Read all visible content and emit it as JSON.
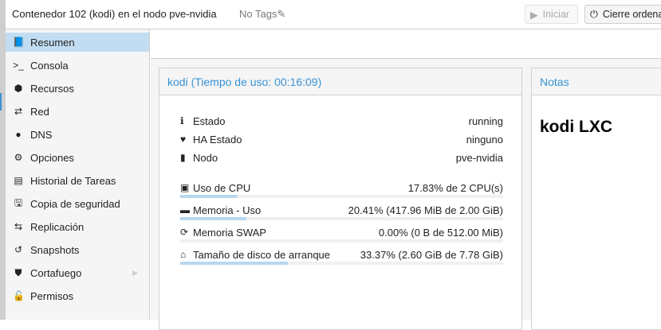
{
  "header": {
    "title": "Contenedor 102 (kodi) en el nodo pve-nvidia",
    "tags": "No Tags",
    "start_label": "Iniciar",
    "shutdown_label": "Cierre ordenado"
  },
  "sidebar": {
    "items": [
      {
        "label": "Resumen",
        "icon": "book-icon",
        "glyph": "📘"
      },
      {
        "label": "Consola",
        "icon": "terminal-icon",
        "glyph": ">_"
      },
      {
        "label": "Recursos",
        "icon": "cube-icon",
        "glyph": "⬢"
      },
      {
        "label": "Red",
        "icon": "exchange-icon",
        "glyph": "⇄"
      },
      {
        "label": "DNS",
        "icon": "globe-icon",
        "glyph": "●"
      },
      {
        "label": "Opciones",
        "icon": "gear-icon",
        "glyph": "⚙"
      },
      {
        "label": "Historial de Tareas",
        "icon": "list-icon",
        "glyph": "▤"
      },
      {
        "label": "Copia de seguridad",
        "icon": "floppy-icon",
        "glyph": "🖫"
      },
      {
        "label": "Replicación",
        "icon": "retweet-icon",
        "glyph": "⇆"
      },
      {
        "label": "Snapshots",
        "icon": "history-icon",
        "glyph": "↺"
      },
      {
        "label": "Cortafuego",
        "icon": "shield-icon",
        "glyph": "⛊"
      },
      {
        "label": "Permisos",
        "icon": "unlock-icon",
        "glyph": "🔓"
      }
    ]
  },
  "summary": {
    "title": "kodi (Tiempo de uso: 00:16:09)",
    "info": [
      {
        "label": "Estado",
        "value": "running",
        "glyph": "ℹ",
        "icon": "info-icon"
      },
      {
        "label": "HA Estado",
        "value": "ninguno",
        "glyph": "♥",
        "icon": "heartbeat-icon"
      },
      {
        "label": "Nodo",
        "value": "pve-nvidia",
        "glyph": "▮",
        "icon": "server-icon"
      }
    ],
    "resources": [
      {
        "label": "Uso de CPU",
        "value": "17.83% de 2 CPU(s)",
        "percent": 17.83,
        "glyph": "▣",
        "icon": "cpu-icon"
      },
      {
        "label": "Memoria - Uso",
        "value": "20.41% (417.96 MiB de 2.00 GiB)",
        "percent": 20.41,
        "glyph": "▬",
        "icon": "memory-icon"
      },
      {
        "label": "Memoria SWAP",
        "value": "0.00% (0 B de 512.00 MiB)",
        "percent": 0,
        "glyph": "⟳",
        "icon": "refresh-icon"
      },
      {
        "label": "Tamaño de disco de arranque",
        "value": "33.37% (2.60 GiB de 7.78 GiB)",
        "percent": 33.37,
        "glyph": "⌂",
        "icon": "hdd-icon"
      }
    ]
  },
  "notes": {
    "title": "Notas",
    "content": "kodi LXC"
  },
  "colors": {
    "accent": "#3892d4",
    "selection": "#c2ddf2",
    "bar_fill": "#b8d7ee"
  }
}
